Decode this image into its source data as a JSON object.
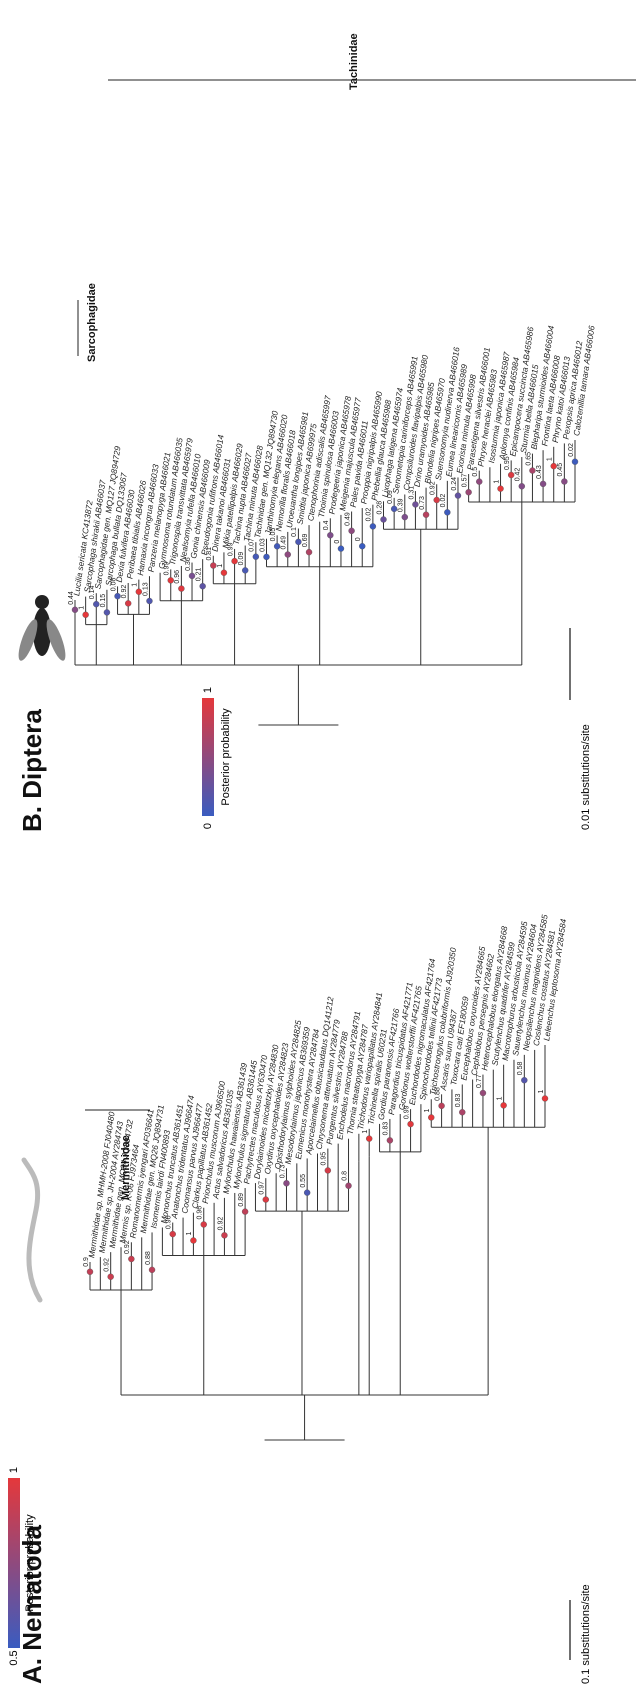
{
  "panels": [
    {
      "title": "A. Nematoda",
      "clade_labels": [
        "Mermithidae"
      ],
      "scale_label": "0.1 substitutions/site",
      "legend": {
        "title": "Posterior probability",
        "max": 1,
        "min": 0.5,
        "high_color": "#e5383b",
        "low_color": "#3a5cc0"
      },
      "taxa": [
        "Mermithidae sp. MHMH-2008 FJ040480",
        "Mermithidae sp. JH-2004 AY284743",
        "Mermithidae gen. MQ94 JQ894732",
        "Mermis sp. K-06 FJ973464",
        "Romanomermis iyengari AF036641",
        "Mermithidae gen. MQ26 JQ894731",
        "Isomermis lairdi FN400893",
        "Mononchus truncatus AB361451",
        "Anatonchus tridentatus AJ966474",
        "Coomansus parvus AJ966477",
        "Clarkus papillatus AB361452",
        "Prionchulus muscorum AJ966500",
        "Actus salvadoricus AB361035",
        "Mylonchulus hawaiiensis AB361439",
        "Mylonchulus sigmaturus AB361445",
        "Pachytrectes maculosus AY630470",
        "Dorylaimoides micoletzkyi AY284830",
        "Oxydirus oxycephaloides AY284823",
        "Opisthodorylaimus sylphoides AY284825",
        "Mesodorylaimus japonicus AB369359",
        "Eumenicus monohystera AY284784",
        "Aporcelaimellus obtusicaudatus DQ141212",
        "Chrysonema attenuatum AY284779",
        "Pungentus silvestris AY284788",
        "Enchodelus macrodorus AY284791",
        "Thornia steatopyga AY284787",
        "Trichodorus variopapillatus AY284841",
        "Trichinella spiralis U60231",
        "Gordius paranensis AF421766",
        "Paragordius tricuspidatus AF421771",
        "Gordionus wolterstorffii AF421765",
        "Euchordodes nigromaculatus AF421764",
        "Spinochordodes tellinii AF421773",
        "Trichostrongylus colubriformis AJ920350",
        "Ascaris suum U94367",
        "Toxocara cati EF180059",
        "Eucephalobus oxyuroides AY284665",
        "Cephalobus persegnis AY284662",
        "Heterocephalobus elongatus AY284668",
        "Scutylenchus quadrifer AY284599",
        "Macrotrophurus arbusticola AY284595",
        "Sauertylenchus maximus AY284604",
        "Neopsilenchus magnidens AY284585",
        "Coslenchus costatus AY284581",
        "Leleenchus leptosoma AY284584"
      ],
      "support": [
        0.9,
        0.92,
        0.92,
        0.88,
        0.96,
        1,
        0.96,
        0.92,
        0.89,
        0.97,
        0.73,
        0.55,
        0.95,
        0.8,
        1,
        0.83,
        0.99,
        1,
        0.88,
        0.83,
        0.77,
        1,
        0.58,
        1
      ]
    },
    {
      "title": "B. Diptera",
      "clade_labels": [
        "Sarcophagidae",
        "Tachinidae"
      ],
      "scale_label": "0.01 substitutions/site",
      "legend": {
        "title": "Posterior probability",
        "max": 1,
        "min": 0,
        "high_color": "#e5383b",
        "low_color": "#3a5cc0"
      },
      "taxa": [
        "Lucilia sericata KC413872",
        "Sarcophaga shirakii AB466037",
        "Sarcophagidae gen. MQ127 JQ894729",
        "Sarcophaga bullata DQ133067",
        "Dexia fulvifera AB466030",
        "Peribaea tibialis AB466026",
        "Hamaxia incongrua AB466033",
        "Panzeria melanopyga AB466021",
        "Gymnosoma rotundatum AB466035",
        "Trigonospila transvittata AB465979",
        "Nealsomyia rufella AB466010",
        "Gonia chinensis AB466009",
        "Pseudogonia rufifrons AB466014",
        "Dinera takanoi AB466031",
        "Mikia patellipalpis AB466029",
        "Tachina nupta AB466027",
        "Tachina minuta AB466028",
        "Tachinidae gen. MQ132 JQ894730",
        "Janthinomyia elegans AB466020",
        "Nemorilla floralis AB466018",
        "Uroeuantha longipes AB465981",
        "Smidtia japonica AB699975",
        "Ctenophorinia adiscalis AB465997",
        "Thoimia spinulosa AB466003",
        "Prodegeeria japonica AB465978",
        "Meigenia majuscula AB465977",
        "Pales pavida AB466011",
        "Prooppia nigripalpis AB465990",
        "Phebellia glauca AB465988",
        "Lixophaga latigena AB465974",
        "Senometopia cariniforceps AB465991",
        "Compsiluroides flavipalpis AB465980",
        "Drino uramyoides AB465985",
        "Blondelia nigripes AB465970",
        "Suensonomyia nudinerva AB466016",
        "Eumea linearicornis AB465989",
        "Exorista mimula AB465998",
        "Parasetigena silvestris AB466001",
        "Phryxe heraclei AB465983",
        "Isosturmia japonica AB465987",
        "Aplomya confinis AB465984",
        "Epicampocera succincta AB465986",
        "Sturmia bella AB466015",
        "Blepharipa sturmioides AB466004",
        "Frontina laeta AB466008",
        "Phryno katoi AB466013",
        "Pexopsis aprica AB466012",
        "Calozenillia tamara AB466006"
      ],
      "support": [
        0.44,
        1,
        0.14,
        0.15,
        0.08,
        0.92,
        1,
        0.13,
        0.99,
        0.96,
        0.36,
        0.21,
        0.81,
        1,
        0.99,
        0.09,
        0.07,
        0.03,
        0.05,
        0.49,
        0.1,
        0.69,
        0.4,
        0,
        0.49,
        0,
        0.02,
        0.28,
        0.09,
        0.39,
        0.31,
        0.73,
        0.92,
        0.02,
        0.24,
        0.57,
        0.5,
        1,
        0.95,
        0.42,
        0.65,
        0.43,
        1,
        0.45,
        0.02
      ]
    }
  ]
}
